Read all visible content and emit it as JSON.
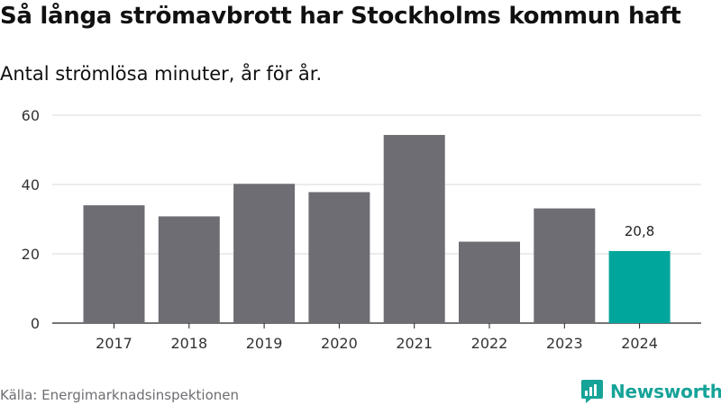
{
  "title": "Så långa strömavbrott har Stockholms kommun haft",
  "subtitle": "Antal strömlösa minuter, år för år.",
  "source": "Källa: Energimarknadsinspektionen",
  "brand": {
    "name": "Newsworthy",
    "color": "#16a398"
  },
  "colors": {
    "bar": "#6e6d73",
    "highlight": "#00a69b",
    "grid": "#d9d9d9",
    "axis": "#222222"
  },
  "chart_data": {
    "type": "bar",
    "title": "Så långa strömavbrott har Stockholms kommun haft",
    "subtitle": "Antal strömlösa minuter, år för år.",
    "xlabel": "",
    "ylabel": "",
    "categories": [
      "2017",
      "2018",
      "2019",
      "2020",
      "2021",
      "2022",
      "2023",
      "2024"
    ],
    "values": [
      34,
      30.8,
      40.2,
      37.8,
      54.3,
      23.5,
      33.1,
      20.8
    ],
    "highlight_index": 7,
    "data_labels": [
      {
        "index": 7,
        "text": "20,8"
      }
    ],
    "ylim": [
      0,
      60
    ],
    "yticks": [
      0,
      20,
      40,
      60
    ],
    "grid": true,
    "legend": "none"
  }
}
